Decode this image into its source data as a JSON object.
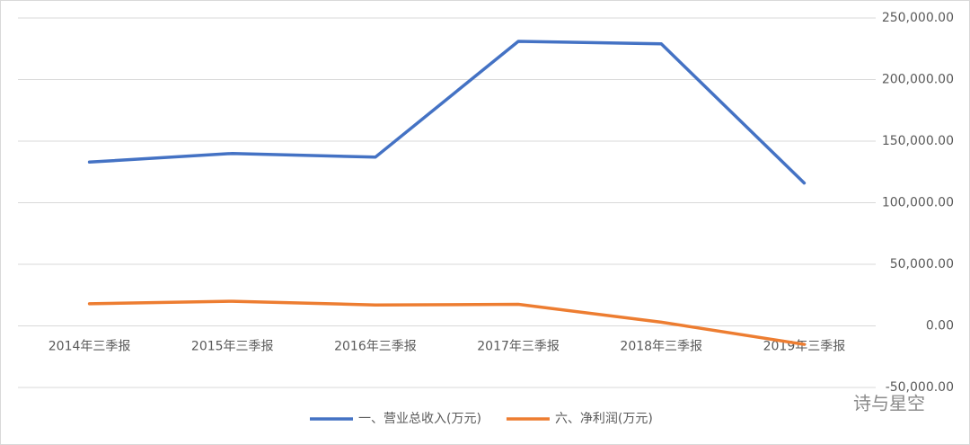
{
  "chart_data": {
    "type": "line",
    "categories": [
      "2014年三季报",
      "2015年三季报",
      "2016年三季报",
      "2017年三季报",
      "2018年三季报",
      "2019年三季报"
    ],
    "series": [
      {
        "name": "一、营业总收入(万元)",
        "color": "#4472c4",
        "values": [
          133000,
          140000,
          137000,
          231000,
          229000,
          116000
        ]
      },
      {
        "name": "六、净利润(万元)",
        "color": "#ed7d31",
        "values": [
          18000,
          20000,
          17000,
          17500,
          3000,
          -15000
        ]
      }
    ],
    "ylim": [
      -50000,
      250000
    ],
    "yticks": [
      {
        "value": -50000,
        "label": "-50,000.00"
      },
      {
        "value": 0,
        "label": "0.00"
      },
      {
        "value": 50000,
        "label": "50,000.00"
      },
      {
        "value": 100000,
        "label": "100,000.00"
      },
      {
        "value": 150000,
        "label": "150,000.00"
      },
      {
        "value": 200000,
        "label": "200,000.00"
      },
      {
        "value": 250000,
        "label": "250,000.00"
      }
    ],
    "grid": true,
    "legend": "bottom",
    "watermark": "诗与星空"
  }
}
